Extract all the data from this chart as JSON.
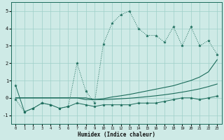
{
  "x": [
    0,
    1,
    2,
    3,
    4,
    5,
    6,
    7,
    8,
    9,
    10,
    11,
    12,
    13,
    14,
    15,
    16,
    17,
    18,
    19,
    20,
    21,
    22,
    23
  ],
  "series_main": [
    0.7,
    -0.8,
    -0.6,
    -0.3,
    -0.4,
    -0.6,
    -0.5,
    -0.3,
    -0.4,
    -0.5,
    -0.4,
    -0.4,
    -0.4,
    -0.4,
    -0.3,
    -0.3,
    -0.3,
    -0.2,
    -0.1,
    0.0,
    0.0,
    -0.1,
    0.0,
    0.1
  ],
  "series_humidex": [
    -0.1,
    -0.8,
    -0.6,
    -0.3,
    -0.4,
    -0.6,
    -0.5,
    2.0,
    0.4,
    -0.3,
    3.1,
    4.3,
    4.8,
    5.0,
    4.0,
    3.6,
    3.6,
    3.2,
    4.1,
    3.0,
    4.1,
    3.0,
    3.3,
    2.5
  ],
  "series_diag1": [
    0.0,
    0.0,
    0.0,
    0.0,
    0.0,
    0.0,
    0.0,
    0.0,
    0.0,
    -0.1,
    -0.05,
    0.05,
    0.12,
    0.2,
    0.3,
    0.4,
    0.5,
    0.6,
    0.7,
    0.85,
    1.0,
    1.2,
    1.5,
    2.2
  ],
  "series_diag2": [
    0.0,
    0.0,
    0.0,
    0.0,
    0.0,
    0.0,
    0.0,
    0.0,
    -0.1,
    -0.1,
    -0.1,
    -0.08,
    -0.05,
    -0.02,
    0.02,
    0.07,
    0.12,
    0.18,
    0.25,
    0.33,
    0.42,
    0.52,
    0.65,
    0.8
  ],
  "bg_color": "#ceeae6",
  "grid_color": "#9ecfc8",
  "line_color": "#1a6b5a",
  "xlabel": "Humidex (Indice chaleur)",
  "ylim": [
    -1.5,
    5.5
  ],
  "xlim": [
    -0.5,
    23.5
  ],
  "yticks": [
    -1,
    0,
    1,
    2,
    3,
    4,
    5
  ],
  "xticks": [
    0,
    1,
    2,
    3,
    4,
    5,
    6,
    7,
    8,
    9,
    10,
    11,
    12,
    13,
    14,
    15,
    16,
    17,
    18,
    19,
    20,
    21,
    22,
    23
  ]
}
